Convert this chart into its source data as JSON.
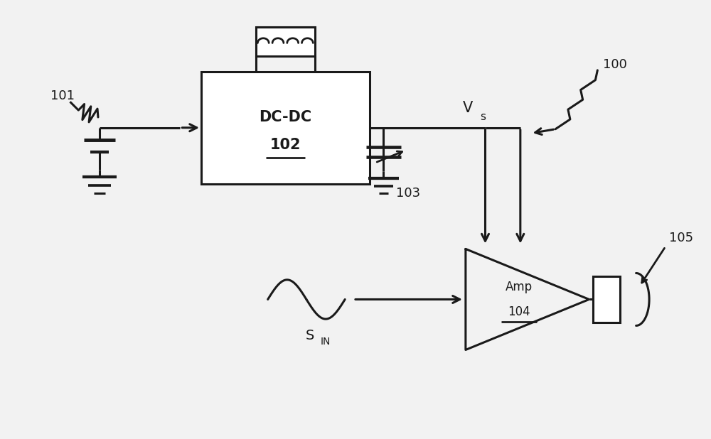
{
  "bg_color": "#f2f2f2",
  "line_color": "#1a1a1a",
  "lw": 2.2,
  "fig_w": 10.0,
  "fig_h": 6.18,
  "dpi": 100,
  "labels": {
    "label_101": "101",
    "label_102_line1": "DC-DC",
    "label_102_line2": "102",
    "label_103": "103",
    "label_100": "100",
    "label_Vs": "V",
    "label_Vs_sub": "s",
    "label_SIN_main": "S",
    "label_SIN_sub": "IN",
    "label_Amp_line1": "Amp",
    "label_Amp_line2": "104",
    "label_105": "105"
  }
}
